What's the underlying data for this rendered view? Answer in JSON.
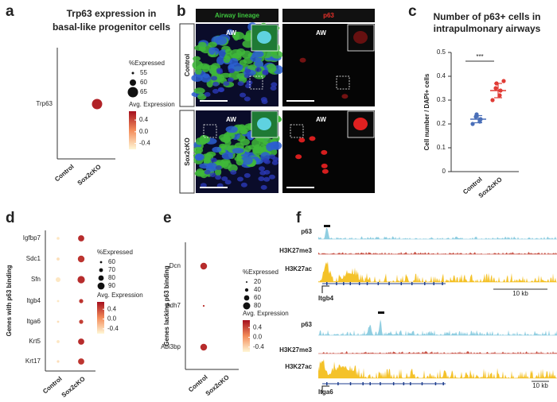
{
  "chart_data": [
    {
      "type": "dotplot",
      "panel": "a",
      "title": [
        "Trp63 expression in",
        "basal-like progenitor cells"
      ],
      "categories": [
        "Control",
        "Sox2cKO"
      ],
      "genes": [
        "Trp63"
      ],
      "pct_expressed": [
        [
          null
        ],
        [
          65
        ]
      ],
      "avg_expression": [
        [
          null
        ],
        [
          0.6
        ]
      ],
      "size_legend_title": "%Expressed",
      "size_legend": [
        55,
        60,
        65
      ],
      "color_legend_title": "Avg. Expression",
      "color_ticks": [
        0.4,
        {
          "value": 0,
          "label": "0.0"
        },
        -0.4
      ],
      "color_lim": [
        -0.6,
        0.7
      ]
    },
    {
      "type": "strip",
      "panel": "c",
      "title": [
        "Number of p63+ cells in",
        "intrapulmonary airways"
      ],
      "y_label": "Cell number / DAPI+ cells",
      "categories": [
        "Control",
        "Sox2cKO"
      ],
      "series": [
        {
          "name": "Control",
          "color": "#4a6fb8",
          "values": [
            0.2,
            0.21,
            0.22,
            0.23,
            0.24
          ]
        },
        {
          "name": "Sox2cKO",
          "color": "#e03b35",
          "values": [
            0.3,
            0.32,
            0.34,
            0.35,
            0.37,
            0.38
          ]
        }
      ],
      "mean": [
        0.22,
        0.34
      ],
      "sd": [
        0.015,
        0.03
      ],
      "significance": "***",
      "ylim": [
        0,
        0.5
      ],
      "yticks": [
        0,
        0.1,
        0.2,
        0.3,
        0.4,
        0.5
      ]
    },
    {
      "type": "dotplot",
      "panel": "d",
      "y_label": "Genes with p63 binding",
      "categories": [
        "Control",
        "Sox2cKO"
      ],
      "genes": [
        "Igfbp7",
        "Sdc1",
        "Sfn",
        "Itgb4",
        "Itga6",
        "Krt5",
        "Krt17"
      ],
      "pct_expressed": [
        [
          64,
          65,
          76,
          60,
          60,
          65,
          62
        ],
        [
          85,
          88,
          92,
          72,
          72,
          85,
          85
        ]
      ],
      "avg_expression": [
        [
          -0.5,
          -0.45,
          -0.5,
          -0.5,
          -0.45,
          -0.5,
          -0.45
        ],
        [
          0.55,
          0.5,
          0.55,
          0.5,
          0.45,
          0.55,
          0.5
        ]
      ],
      "size_legend_title": "%Expressed",
      "size_legend": [
        60,
        70,
        80,
        90
      ],
      "color_legend_title": "Avg. Expression",
      "color_ticks": [
        0.4,
        {
          "value": 0,
          "label": "0.0"
        },
        -0.4
      ],
      "color_lim": [
        -0.6,
        0.7
      ]
    },
    {
      "type": "dotplot",
      "panel": "e",
      "y_label": "Genes lacking p63 binding",
      "categories": [
        "Control",
        "Sox2cKO"
      ],
      "genes": [
        "Dcn",
        "Adh7",
        "Abi3bp"
      ],
      "pct_expressed": [
        [
          75,
          22,
          75
        ],
        [
          null,
          null,
          null
        ]
      ],
      "avg_expression": [
        [
          0.55,
          0.5,
          0.55
        ],
        [
          null,
          null,
          null
        ]
      ],
      "size_legend_title": "%Expressed",
      "size_legend": [
        20,
        40,
        60,
        80
      ],
      "color_legend_title": "Avg. Expression",
      "color_ticks": [
        0.4,
        {
          "value": 0,
          "label": "0.0"
        },
        -0.4
      ],
      "color_lim": [
        -0.6,
        0.7
      ]
    }
  ],
  "panel_b": {
    "panel": "b",
    "columns": [
      "Airway lineage",
      "p63"
    ],
    "rows": [
      "Control",
      "Sox2cKO"
    ],
    "region_label": "AW"
  },
  "panel_f": {
    "panel": "f",
    "tracks": [
      "p63",
      "H3K27me3",
      "H3K27ac"
    ],
    "loci": [
      "Itgb4",
      "Itga6"
    ],
    "scale_label": "10 kb"
  }
}
